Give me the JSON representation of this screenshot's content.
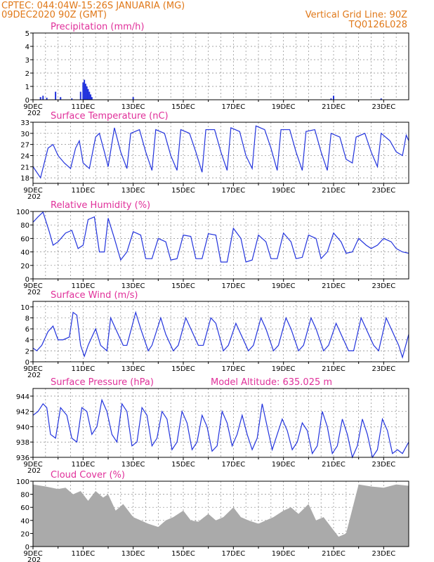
{
  "header": {
    "line1": "CPTEC:   044:04W-15:26S   JANUARIA (MG)",
    "line2": "09DEC2020 90Z (GMT)",
    "grid_note": "Vertical Grid Line: 90Z",
    "code": "TQ0126L028"
  },
  "colors": {
    "header": "#e07818",
    "title": "#e0309a",
    "series": "#2233dd",
    "cloud": "#aaaaaa",
    "grid": "#888888"
  },
  "x_ticks": [
    "9DEC",
    "11DEC",
    "13DEC",
    "15DEC",
    "17DEC",
    "19DEC",
    "21DEC",
    "23DEC"
  ],
  "year_stub": "202",
  "chart_data": [
    {
      "id": "precip",
      "type": "bar",
      "title": "Precipitation (mm/h)",
      "ylim": [
        0,
        5
      ],
      "yticks": [
        0,
        1,
        2,
        3,
        4,
        5
      ],
      "xlim": [
        0,
        15
      ],
      "x": [
        0.3,
        0.4,
        0.55,
        0.9,
        1.1,
        1.55,
        1.9,
        2.0,
        2.05,
        2.1,
        2.15,
        2.2,
        2.25,
        2.3,
        2.35,
        4.0,
        11.9,
        12.0,
        13.9
      ],
      "values": [
        0.2,
        0.3,
        0.15,
        0.6,
        0.2,
        0.1,
        0.6,
        1.3,
        1.5,
        1.2,
        1.0,
        0.8,
        0.6,
        0.4,
        0.2,
        0.2,
        0.1,
        0.3,
        0.1
      ]
    },
    {
      "id": "temp",
      "type": "line",
      "title": "Surface Temperature (nC)",
      "ylim": [
        16.5,
        33
      ],
      "yticks": [
        18,
        21,
        24,
        27,
        30,
        33
      ],
      "xlim": [
        0,
        15
      ],
      "x": [
        0,
        0.3,
        0.6,
        0.8,
        1.0,
        1.25,
        1.5,
        1.7,
        1.85,
        2.0,
        2.25,
        2.5,
        2.65,
        2.85,
        3.0,
        3.25,
        3.5,
        3.75,
        3.9,
        4.25,
        4.5,
        4.75,
        4.9,
        5.25,
        5.5,
        5.75,
        5.9,
        6.25,
        6.5,
        6.75,
        6.9,
        7.25,
        7.5,
        7.75,
        7.9,
        8.25,
        8.5,
        8.75,
        8.9,
        9.25,
        9.5,
        9.75,
        9.9,
        10.25,
        10.5,
        10.75,
        10.9,
        11.25,
        11.5,
        11.75,
        11.9,
        12.25,
        12.5,
        12.75,
        12.9,
        13.25,
        13.5,
        13.75,
        13.9,
        14.25,
        14.5,
        14.75,
        14.9,
        15
      ],
      "values": [
        21,
        18,
        26,
        27,
        24,
        22,
        20.5,
        26,
        28,
        22,
        20.5,
        29,
        30,
        25,
        21,
        31.5,
        25,
        20.5,
        30,
        31,
        25,
        20,
        31,
        30,
        24,
        20,
        31,
        30,
        25,
        19.5,
        31,
        31,
        25,
        20,
        31.5,
        30.5,
        24,
        20.5,
        32,
        31,
        26,
        20,
        31,
        31,
        25,
        20,
        30.5,
        31,
        25,
        20,
        30,
        29,
        23,
        22,
        29,
        30,
        25,
        21,
        30,
        28,
        25,
        24,
        29.5,
        28
      ]
    },
    {
      "id": "rh",
      "type": "line",
      "title": "Relative Humidity (%)",
      "ylim": [
        0,
        100
      ],
      "yticks": [
        0,
        20,
        40,
        60,
        80,
        100
      ],
      "xlim": [
        0,
        15
      ],
      "x": [
        0,
        0.2,
        0.4,
        0.65,
        0.8,
        1.0,
        1.3,
        1.55,
        1.8,
        2.0,
        2.2,
        2.45,
        2.65,
        2.85,
        3.0,
        3.25,
        3.5,
        3.75,
        4.0,
        4.3,
        4.5,
        4.75,
        5.0,
        5.3,
        5.5,
        5.75,
        6.0,
        6.3,
        6.5,
        6.75,
        7.0,
        7.3,
        7.5,
        7.75,
        8.0,
        8.3,
        8.5,
        8.75,
        9.0,
        9.3,
        9.5,
        9.75,
        10.0,
        10.3,
        10.5,
        10.75,
        11.0,
        11.3,
        11.5,
        11.75,
        12.0,
        12.3,
        12.5,
        12.75,
        13.0,
        13.3,
        13.5,
        13.75,
        14.0,
        14.3,
        14.5,
        14.75,
        15
      ],
      "values": [
        84,
        92,
        99,
        70,
        50,
        55,
        68,
        72,
        45,
        50,
        88,
        92,
        40,
        40,
        90,
        60,
        28,
        40,
        70,
        65,
        30,
        30,
        60,
        55,
        28,
        30,
        65,
        63,
        30,
        30,
        67,
        65,
        25,
        25,
        75,
        60,
        25,
        28,
        65,
        55,
        30,
        30,
        68,
        55,
        30,
        32,
        65,
        60,
        30,
        40,
        68,
        55,
        38,
        40,
        60,
        50,
        45,
        50,
        60,
        55,
        45,
        40,
        38
      ]
    },
    {
      "id": "wind",
      "type": "line",
      "title": "Surface Wind (m/s)",
      "ylim": [
        0,
        11
      ],
      "yticks": [
        0,
        2,
        4,
        6,
        8,
        10
      ],
      "xlim": [
        0,
        15
      ],
      "x": [
        0,
        0.15,
        0.35,
        0.6,
        0.8,
        1.0,
        1.2,
        1.45,
        1.6,
        1.75,
        1.9,
        2.05,
        2.2,
        2.5,
        2.7,
        2.95,
        3.1,
        3.3,
        3.6,
        3.75,
        4.1,
        4.3,
        4.6,
        4.75,
        5.1,
        5.3,
        5.6,
        5.8,
        6.1,
        6.3,
        6.6,
        6.8,
        7.1,
        7.3,
        7.6,
        7.8,
        8.1,
        8.3,
        8.6,
        8.8,
        9.1,
        9.3,
        9.6,
        9.8,
        10.1,
        10.3,
        10.6,
        10.8,
        11.1,
        11.3,
        11.6,
        11.8,
        12.1,
        12.3,
        12.6,
        12.8,
        13.1,
        13.3,
        13.6,
        13.8,
        14.1,
        14.3,
        14.6,
        14.75,
        15
      ],
      "values": [
        2.5,
        2,
        3,
        5.5,
        6.5,
        4,
        4,
        4.5,
        9,
        8.5,
        3,
        1,
        3,
        6,
        3,
        2,
        8,
        6,
        3,
        3,
        9,
        6,
        2,
        3,
        8,
        5,
        2,
        3,
        8,
        6,
        3,
        3,
        8,
        7,
        2,
        3,
        7,
        5,
        2,
        3,
        8,
        6,
        2,
        3,
        8,
        6,
        2,
        3,
        8,
        6,
        2,
        3,
        7,
        5,
        2,
        2,
        8,
        6,
        3,
        2,
        8,
        6,
        3,
        0.8,
        5
      ]
    },
    {
      "id": "pressure",
      "type": "line",
      "title": "Surface Pressure (hPa)",
      "annotation": "Model Altitude: 635.025 m",
      "ylim": [
        936,
        945
      ],
      "yticks": [
        936,
        938,
        940,
        942,
        944
      ],
      "xlim": [
        0,
        15
      ],
      "x": [
        0,
        0.2,
        0.4,
        0.55,
        0.7,
        0.9,
        1.1,
        1.35,
        1.55,
        1.75,
        1.95,
        2.15,
        2.35,
        2.55,
        2.75,
        2.95,
        3.15,
        3.35,
        3.55,
        3.75,
        3.95,
        4.15,
        4.35,
        4.55,
        4.75,
        4.95,
        5.15,
        5.35,
        5.55,
        5.75,
        5.95,
        6.15,
        6.35,
        6.55,
        6.75,
        6.95,
        7.15,
        7.35,
        7.55,
        7.75,
        7.95,
        8.15,
        8.35,
        8.55,
        8.75,
        8.95,
        9.15,
        9.35,
        9.55,
        9.75,
        9.95,
        10.15,
        10.35,
        10.55,
        10.75,
        10.95,
        11.15,
        11.35,
        11.55,
        11.75,
        11.95,
        12.15,
        12.35,
        12.55,
        12.75,
        12.95,
        13.15,
        13.35,
        13.55,
        13.75,
        13.95,
        14.15,
        14.35,
        14.55,
        14.75,
        15
      ],
      "values": [
        941.5,
        942,
        943,
        942.5,
        939,
        938.5,
        942.5,
        941.5,
        938.5,
        938,
        942.5,
        942,
        939,
        940,
        943.5,
        942,
        939,
        938,
        943,
        942,
        937.5,
        938,
        942.5,
        941.5,
        937.5,
        938.5,
        942,
        941,
        937,
        938,
        942,
        940.5,
        937,
        938,
        941.5,
        940,
        936.8,
        937.5,
        942,
        940.5,
        937.5,
        939,
        941.5,
        939,
        937,
        938.5,
        943,
        940,
        937,
        939,
        941,
        939.5,
        937,
        938,
        940.5,
        939.5,
        936.5,
        937.5,
        942,
        940,
        936.5,
        937.5,
        941,
        939,
        936,
        937.5,
        941,
        939,
        936,
        937,
        941,
        939.5,
        936.5,
        937,
        936.5,
        938
      ]
    },
    {
      "id": "cloud",
      "type": "area",
      "title": "Cloud Cover (%)",
      "ylim": [
        0,
        100
      ],
      "yticks": [
        0,
        20,
        40,
        60,
        80,
        100
      ],
      "xlim": [
        0,
        15
      ],
      "x": [
        0,
        0.5,
        1.0,
        1.3,
        1.6,
        1.9,
        2.2,
        2.5,
        2.8,
        3.0,
        3.3,
        3.6,
        4.0,
        4.3,
        4.6,
        5.0,
        5.3,
        5.6,
        6.0,
        6.3,
        6.6,
        7.0,
        7.3,
        7.6,
        8.0,
        8.3,
        8.6,
        9.0,
        9.3,
        9.6,
        10.0,
        10.3,
        10.6,
        11.0,
        11.3,
        11.6,
        11.9,
        12.2,
        12.5,
        13.0,
        13.5,
        14.0,
        14.5,
        15
      ],
      "values": [
        95,
        92,
        88,
        90,
        80,
        85,
        70,
        85,
        75,
        80,
        55,
        65,
        45,
        40,
        35,
        30,
        40,
        45,
        55,
        40,
        38,
        50,
        40,
        45,
        60,
        45,
        40,
        35,
        40,
        45,
        55,
        60,
        50,
        65,
        40,
        45,
        30,
        15,
        20,
        95,
        92,
        90,
        95,
        93
      ]
    }
  ]
}
